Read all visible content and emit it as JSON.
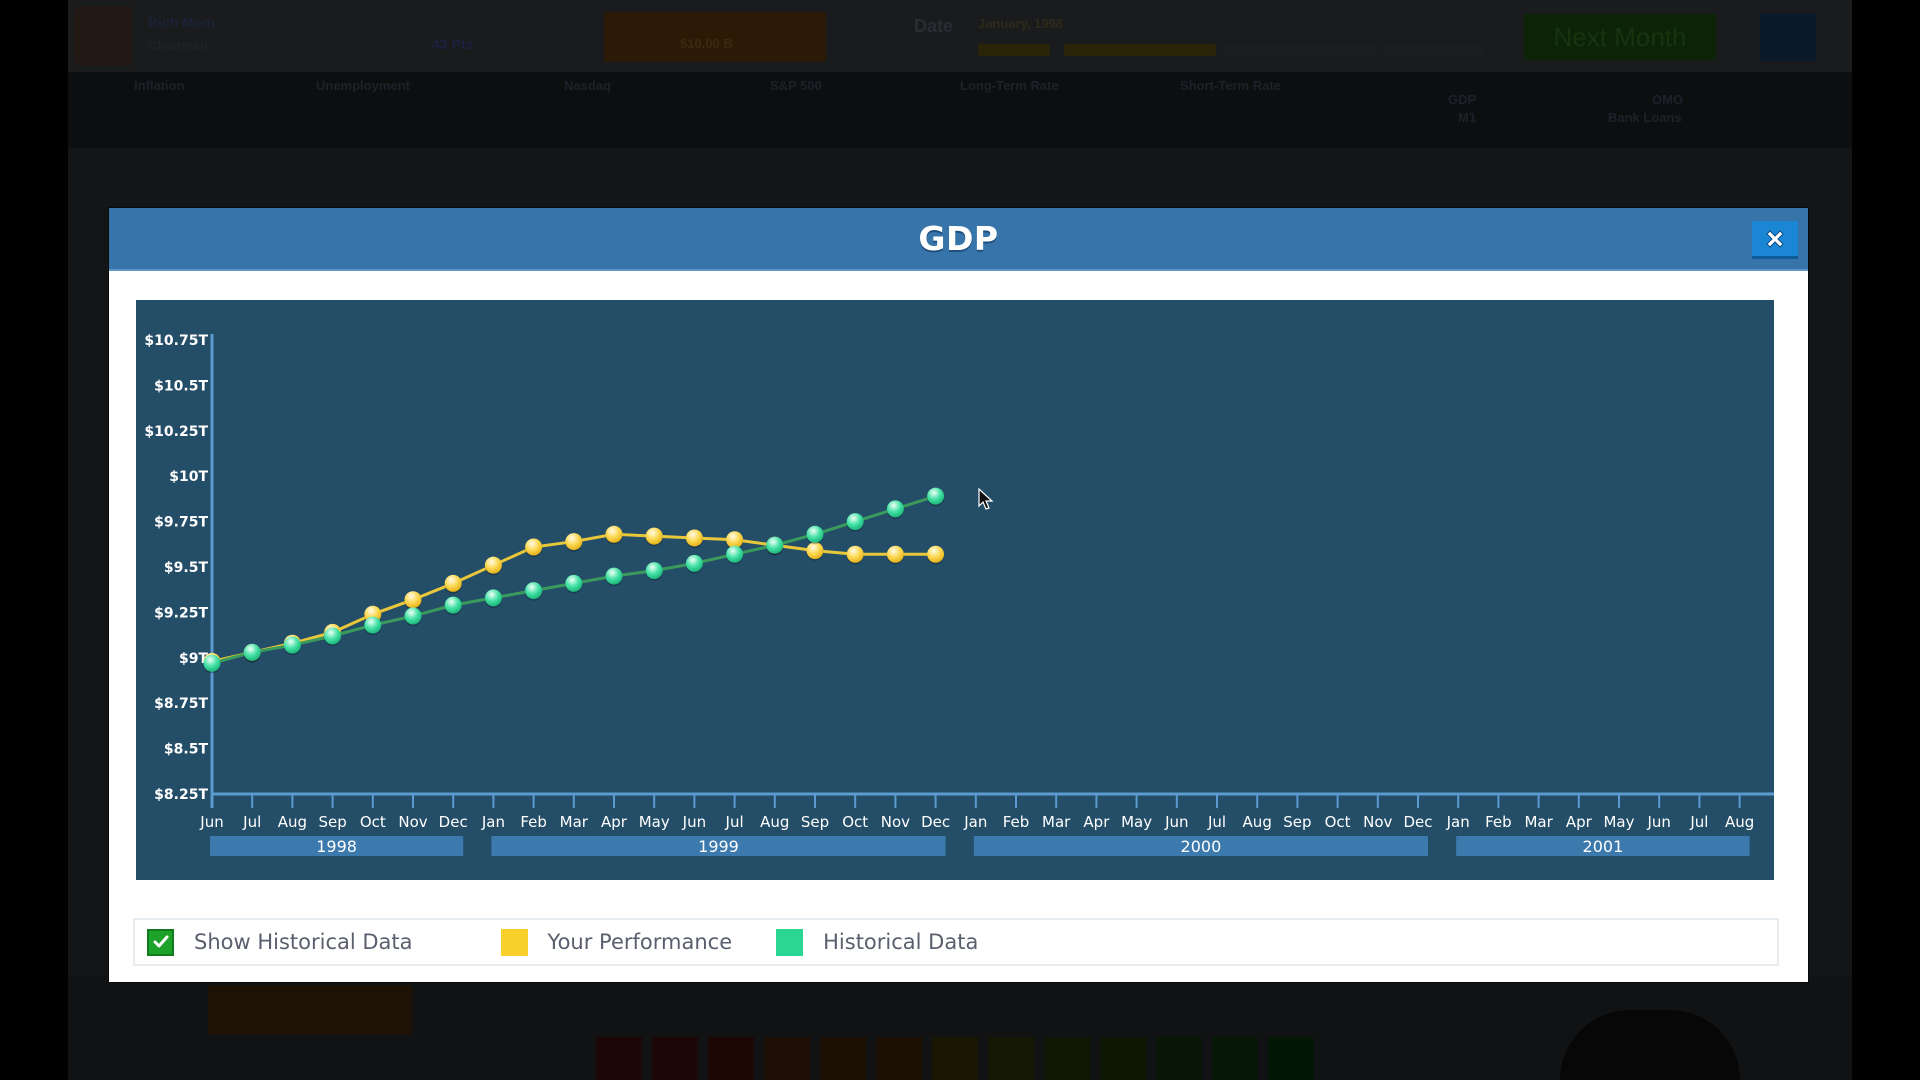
{
  "background": {
    "player": {
      "name": "Rich Mom",
      "subtitle": "Chairman",
      "score": "43 Pts"
    },
    "budget_label": "$10.00 B",
    "date_label": "Date",
    "date_value": "January, 1998",
    "next_month_button": "Next Month",
    "stats": [
      {
        "label": "Inflation"
      },
      {
        "label": "Unemployment"
      },
      {
        "label": "Nasdaq"
      },
      {
        "label": "S&P 500"
      },
      {
        "label": "Long-Term Rate"
      },
      {
        "label": "Short-Term Rate"
      }
    ],
    "side_stats": [
      {
        "label": "GDP"
      },
      {
        "label": "M1"
      },
      {
        "label": "OMO"
      },
      {
        "label": "Bank Loans"
      }
    ]
  },
  "modal": {
    "title": "GDP",
    "close_icon": "close-x-icon",
    "legend": {
      "show_historical_label": "Show Historical Data",
      "show_historical_checked": true,
      "your_performance_label": "Your Performance",
      "historical_label": "Historical Data",
      "colors": {
        "your_performance": "#f9cf2b",
        "historical": "#2ad692",
        "checkbox": "#1ea32a"
      }
    }
  },
  "colors": {
    "header": "#3774a9",
    "chart_bg": "#244d68",
    "axis": "#5b9bd0",
    "your_line": "#e8c83a",
    "historical_line": "#3a9a5c"
  },
  "chart_data": {
    "type": "line",
    "title": "GDP",
    "xlabel": "",
    "ylabel": "",
    "y_ticks": [
      "$8.25T",
      "$8.5T",
      "$8.75T",
      "$9T",
      "$9.25T",
      "$9.5T",
      "$9.75T",
      "$10T",
      "$10.25T",
      "$10.5T",
      "$10.75T"
    ],
    "ylim": [
      8.25,
      10.75
    ],
    "x": [
      "Jun",
      "Jul",
      "Aug",
      "Sep",
      "Oct",
      "Nov",
      "Dec",
      "Jan",
      "Feb",
      "Mar",
      "Apr",
      "May",
      "Jun",
      "Jul",
      "Aug",
      "Sep",
      "Oct",
      "Nov",
      "Dec",
      "Jan",
      "Feb",
      "Mar",
      "Apr",
      "May",
      "Jun",
      "Jul",
      "Aug",
      "Sep",
      "Oct",
      "Nov",
      "Dec",
      "Jan",
      "Feb",
      "Mar",
      "Apr",
      "May",
      "Jun",
      "Jul",
      "Aug"
    ],
    "year_groups": [
      {
        "label": "1998",
        "start": 0,
        "end": 6
      },
      {
        "label": "1999",
        "start": 7,
        "end": 18
      },
      {
        "label": "2000",
        "start": 19,
        "end": 30
      },
      {
        "label": "2001",
        "start": 31,
        "end": 38
      }
    ],
    "series": [
      {
        "name": "Your Performance",
        "color": "#f9cf2b",
        "values": [
          8.98,
          9.03,
          9.08,
          9.14,
          9.24,
          9.32,
          9.41,
          9.51,
          9.61,
          9.64,
          9.68,
          9.67,
          9.66,
          9.65,
          9.62,
          9.59,
          9.57,
          9.57,
          9.57
        ]
      },
      {
        "name": "Historical Data",
        "color": "#2ad692",
        "values": [
          8.97,
          9.03,
          9.07,
          9.12,
          9.18,
          9.23,
          9.29,
          9.33,
          9.37,
          9.41,
          9.45,
          9.48,
          9.52,
          9.57,
          9.62,
          9.68,
          9.75,
          9.82,
          9.89
        ]
      }
    ],
    "grid": false,
    "legend_position": "bottom"
  }
}
